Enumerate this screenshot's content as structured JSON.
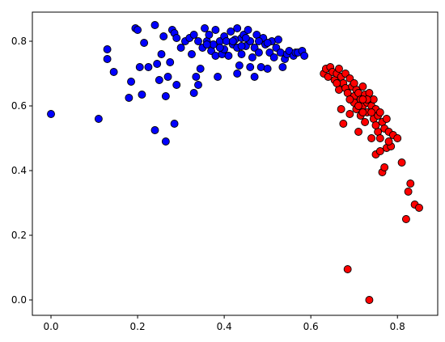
{
  "chart_data": {
    "type": "scatter",
    "xlim": [
      -0.043,
      0.893
    ],
    "ylim": [
      -0.0475,
      0.89
    ],
    "xticks": [
      {
        "value": 0,
        "label": "0.0"
      },
      0.2,
      0.4,
      0.6,
      0.8
    ],
    "yticks": [
      {
        "value": 0,
        "label": "0.0"
      },
      0.2,
      0.4,
      0.6,
      0.8
    ],
    "series": [
      {
        "color": "#0000ff",
        "x": [
          0,
          0.11,
          0.13,
          0.13,
          0.145,
          0.18,
          0.185,
          0.195,
          0.2,
          0.205,
          0.21,
          0.215,
          0.225,
          0.24,
          0.24,
          0.245,
          0.25,
          0.255,
          0.26,
          0.265,
          0.265,
          0.27,
          0.275,
          0.28,
          0.285,
          0.285,
          0.29,
          0.29,
          0.3,
          0.31,
          0.32,
          0.325,
          0.33,
          0.33,
          0.335,
          0.34,
          0.34,
          0.345,
          0.35,
          0.355,
          0.36,
          0.365,
          0.37,
          0.375,
          0.38,
          0.38,
          0.385,
          0.39,
          0.395,
          0.4,
          0.4,
          0.405,
          0.41,
          0.415,
          0.42,
          0.425,
          0.43,
          0.43,
          0.435,
          0.44,
          0.44,
          0.445,
          0.45,
          0.455,
          0.46,
          0.46,
          0.465,
          0.47,
          0.47,
          0.475,
          0.48,
          0.485,
          0.49,
          0.495,
          0.5,
          0.505,
          0.51,
          0.515,
          0.52,
          0.525,
          0.53,
          0.535,
          0.54,
          0.545,
          0.55,
          0.56,
          0.565,
          0.57,
          0.58,
          0.585,
          0.42,
          0.43,
          0.45,
          0.48,
          0.39,
          0.36,
          0.44,
          0.5
        ],
        "y": [
          0.575,
          0.56,
          0.775,
          0.745,
          0.705,
          0.625,
          0.675,
          0.84,
          0.835,
          0.72,
          0.635,
          0.795,
          0.72,
          0.525,
          0.85,
          0.73,
          0.68,
          0.76,
          0.815,
          0.49,
          0.63,
          0.69,
          0.735,
          0.835,
          0.545,
          0.825,
          0.665,
          0.81,
          0.78,
          0.8,
          0.81,
          0.76,
          0.64,
          0.82,
          0.69,
          0.8,
          0.665,
          0.715,
          0.78,
          0.84,
          0.8,
          0.82,
          0.77,
          0.79,
          0.755,
          0.835,
          0.69,
          0.8,
          0.76,
          0.815,
          0.775,
          0.8,
          0.755,
          0.83,
          0.79,
          0.805,
          0.7,
          0.84,
          0.725,
          0.76,
          0.81,
          0.82,
          0.785,
          0.835,
          0.72,
          0.8,
          0.75,
          0.69,
          0.78,
          0.82,
          0.765,
          0.72,
          0.81,
          0.79,
          0.715,
          0.765,
          0.8,
          0.75,
          0.78,
          0.805,
          0.765,
          0.72,
          0.745,
          0.76,
          0.77,
          0.755,
          0.765,
          0.765,
          0.77,
          0.755,
          0.8,
          0.78,
          0.81,
          0.8,
          0.78,
          0.79,
          0.785,
          0.795
        ]
      },
      {
        "color": "#ff0000",
        "x": [
          0.63,
          0.635,
          0.64,
          0.645,
          0.65,
          0.655,
          0.66,
          0.665,
          0.665,
          0.67,
          0.67,
          0.675,
          0.675,
          0.68,
          0.68,
          0.685,
          0.685,
          0.69,
          0.69,
          0.695,
          0.7,
          0.7,
          0.705,
          0.705,
          0.71,
          0.71,
          0.715,
          0.715,
          0.72,
          0.72,
          0.725,
          0.725,
          0.73,
          0.73,
          0.735,
          0.735,
          0.74,
          0.74,
          0.745,
          0.745,
          0.75,
          0.75,
          0.755,
          0.755,
          0.76,
          0.76,
          0.765,
          0.765,
          0.77,
          0.77,
          0.775,
          0.775,
          0.78,
          0.785,
          0.79,
          0.8,
          0.81,
          0.82,
          0.825,
          0.83,
          0.84,
          0.85,
          0.7,
          0.71,
          0.72,
          0.73,
          0.66,
          0.69,
          0.74,
          0.75,
          0.76,
          0.72,
          0.78
        ],
        "y": [
          0.7,
          0.715,
          0.69,
          0.72,
          0.705,
          0.68,
          0.7,
          0.715,
          0.65,
          0.69,
          0.59,
          0.67,
          0.545,
          0.7,
          0.655,
          0.095,
          0.64,
          0.685,
          0.575,
          0.66,
          0.63,
          0.61,
          0.65,
          0.59,
          0.64,
          0.52,
          0.62,
          0.57,
          0.66,
          0.6,
          0.635,
          0.55,
          0.61,
          0.58,
          0.64,
          0.0,
          0.6,
          0.5,
          0.62,
          0.56,
          0.59,
          0.45,
          0.57,
          0.52,
          0.58,
          0.46,
          0.395,
          0.55,
          0.53,
          0.41,
          0.56,
          0.47,
          0.52,
          0.475,
          0.51,
          0.5,
          0.425,
          0.25,
          0.335,
          0.36,
          0.295,
          0.285,
          0.67,
          0.6,
          0.58,
          0.62,
          0.67,
          0.62,
          0.58,
          0.54,
          0.5,
          0.62,
          0.49
        ]
      }
    ]
  }
}
